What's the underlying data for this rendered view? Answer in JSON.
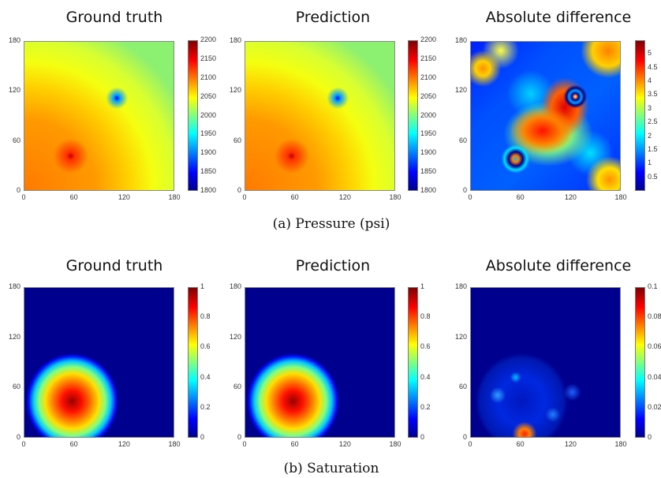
{
  "chart_data": [
    {
      "type": "heatmap",
      "title": "Ground truth",
      "xlim": [
        0,
        180
      ],
      "ylim": [
        0,
        180
      ],
      "x_ticks": [
        "0",
        "60",
        "120",
        "180"
      ],
      "y_ticks": [
        "0",
        "60",
        "120",
        "180"
      ],
      "colorbar": {
        "min": 1800,
        "max": 2200,
        "ticks": [
          "1800",
          "1850",
          "1900",
          "1950",
          "2000",
          "2050",
          "2100",
          "2150",
          "2200"
        ]
      },
      "features": [
        {
          "type": "high",
          "x": 55,
          "y": 40,
          "value": 2200
        },
        {
          "type": "low",
          "x": 118,
          "y": 118,
          "value": 1800
        }
      ]
    },
    {
      "type": "heatmap",
      "title": "Prediction",
      "xlim": [
        0,
        180
      ],
      "ylim": [
        0,
        180
      ],
      "x_ticks": [
        "0",
        "60",
        "120",
        "180"
      ],
      "y_ticks": [
        "0",
        "60",
        "120",
        "180"
      ],
      "colorbar": {
        "min": 1800,
        "max": 2200,
        "ticks": [
          "1800",
          "1850",
          "1900",
          "1950",
          "2000",
          "2050",
          "2100",
          "2150",
          "2200"
        ]
      },
      "features": [
        {
          "type": "high",
          "x": 55,
          "y": 40,
          "value": 2200
        },
        {
          "type": "low",
          "x": 118,
          "y": 118,
          "value": 1800
        }
      ]
    },
    {
      "type": "heatmap",
      "title": "Absolute difference",
      "xlim": [
        0,
        180
      ],
      "ylim": [
        0,
        180
      ],
      "x_ticks": [
        "0",
        "60",
        "120",
        "180"
      ],
      "y_ticks": [
        "0",
        "60",
        "120",
        "180"
      ],
      "colorbar": {
        "min": 0,
        "max": 5.5,
        "ticks": [
          "0.5",
          "1",
          "1.5",
          "2",
          "2.5",
          "3",
          "3.5",
          "4",
          "4.5",
          "5"
        ]
      }
    },
    {
      "type": "heatmap",
      "title": "Ground truth",
      "xlim": [
        0,
        180
      ],
      "ylim": [
        0,
        180
      ],
      "x_ticks": [
        "0",
        "60",
        "120",
        "180"
      ],
      "y_ticks": [
        "0",
        "60",
        "120",
        "180"
      ],
      "colorbar": {
        "min": 0,
        "max": 1,
        "ticks": [
          "0",
          "0.2",
          "0.4",
          "0.6",
          "0.8",
          "1"
        ]
      },
      "features": [
        {
          "type": "plume",
          "x": 60,
          "y": 45,
          "value": 1
        }
      ]
    },
    {
      "type": "heatmap",
      "title": "Prediction",
      "xlim": [
        0,
        180
      ],
      "ylim": [
        0,
        180
      ],
      "x_ticks": [
        "0",
        "60",
        "120",
        "180"
      ],
      "y_ticks": [
        "0",
        "60",
        "120",
        "180"
      ],
      "colorbar": {
        "min": 0,
        "max": 1,
        "ticks": [
          "0",
          "0.2",
          "0.4",
          "0.6",
          "0.8",
          "1"
        ]
      },
      "features": [
        {
          "type": "plume",
          "x": 60,
          "y": 45,
          "value": 1
        }
      ]
    },
    {
      "type": "heatmap",
      "title": "Absolute difference",
      "xlim": [
        0,
        180
      ],
      "ylim": [
        0,
        180
      ],
      "x_ticks": [
        "0",
        "60",
        "120",
        "180"
      ],
      "y_ticks": [
        "0",
        "60",
        "120",
        "180"
      ],
      "colorbar": {
        "min": 0,
        "max": 0.1,
        "ticks": [
          "0",
          "0.02",
          "0.04",
          "0.06",
          "0.08",
          "0.1"
        ]
      }
    }
  ],
  "captions": {
    "a": "(a) Pressure (psi)",
    "b": "(b) Saturation"
  }
}
